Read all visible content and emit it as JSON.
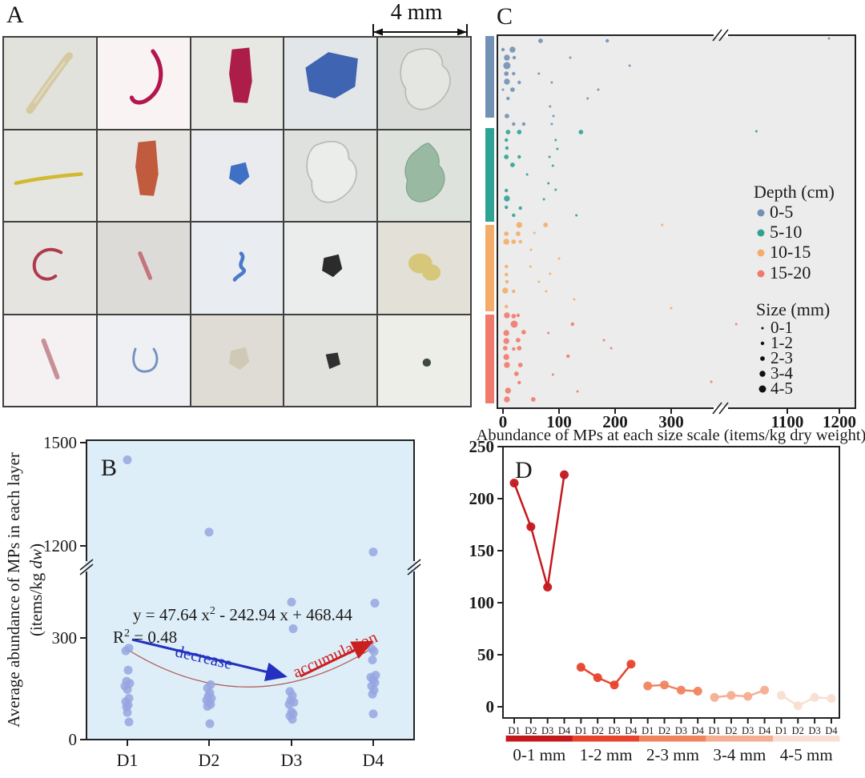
{
  "figure_labels": {
    "a": "A",
    "b": "B",
    "c": "C",
    "d": "D"
  },
  "panel_a": {
    "scale_bar_label": "4 mm",
    "cells": [
      {
        "desc": "beige fiber",
        "type": "fiber-thick-diag",
        "color": "#d5c9a2",
        "bg": "#e2e2dc"
      },
      {
        "desc": "crimson curved fiber",
        "type": "fiber-curve-j",
        "color": "#b2164e",
        "bg": "#f9f3f4"
      },
      {
        "desc": "crimson fragment",
        "type": "fragment-tall",
        "color": "#ac1d4a",
        "bg": "#e7e7e3"
      },
      {
        "desc": "blue fragment",
        "type": "fragment-wide",
        "color": "#3f64b1",
        "bg": "#e3e6e9"
      },
      {
        "desc": "transparent film",
        "type": "film-large",
        "color": "#e3e7e2",
        "bg": "#d9dcd8"
      },
      {
        "desc": "yellow fiber",
        "type": "fiber-thin-h",
        "color": "#d3b931",
        "bg": "#e5e5e1"
      },
      {
        "desc": "orange-red fragment",
        "type": "fragment-tall",
        "color": "#c05b3d",
        "bg": "#e7e5e1"
      },
      {
        "desc": "blue fragment small",
        "type": "fragment-small",
        "color": "#4070c6",
        "bg": "#e9ebef"
      },
      {
        "desc": "transparent fragment",
        "type": "film-large",
        "color": "#eceeec",
        "bg": "#dee1dd"
      },
      {
        "desc": "green film",
        "type": "film-crumpled",
        "color": "#93b59d",
        "bg": "#dde2dc"
      },
      {
        "desc": "red curved fiber",
        "type": "fiber-curve-c",
        "color": "#ae3a4e",
        "bg": "#e5e4e0"
      },
      {
        "desc": "pink short fiber",
        "type": "fiber-short",
        "color": "#c3747f",
        "bg": "#dddbd7"
      },
      {
        "desc": "blue small fiber",
        "type": "squiggle",
        "color": "#4b7aca",
        "bg": "#e9edf2"
      },
      {
        "desc": "black fragment",
        "type": "fragment-small",
        "color": "#2b2b2b",
        "bg": "#ebecec"
      },
      {
        "desc": "yellow fragment",
        "type": "clump",
        "color": "#d7c77b",
        "bg": "#e3e1d7"
      },
      {
        "desc": "pink fiber",
        "type": "fiber-straight",
        "color": "#c88f96",
        "bg": "#f5f0f2"
      },
      {
        "desc": "blue curved thin fiber",
        "type": "fiber-curve-u",
        "color": "#7191c3",
        "bg": "#eef0f3"
      },
      {
        "desc": "white fragment",
        "type": "fragment-small",
        "color": "#cfc9b6",
        "bg": "#dedcd4"
      },
      {
        "desc": "black fragment small",
        "type": "frag-tiny",
        "color": "#303030",
        "bg": "#e1e2de"
      },
      {
        "desc": "dark green tiny fragment",
        "type": "dot-tiny",
        "color": "#3d4b3d",
        "bg": "#eeeee8"
      }
    ]
  },
  "chart_data": [
    {
      "panel": "B",
      "type": "scatter",
      "ylabel_line1": "Average abundance of MPs in each layer",
      "ylabel_line2_prefix": "(items/kg ",
      "ylabel_line2_italic": "dw",
      "ylabel_line2_suffix": ")",
      "categories": [
        "D1",
        "D2",
        "D3",
        "D4"
      ],
      "yticks": [
        0,
        300,
        1200,
        1500
      ],
      "ylim": [
        0,
        1500
      ],
      "axis_break_between": [
        300,
        1200
      ],
      "grid": false,
      "bg": "#ddeef8",
      "dot_color": "#97a6e0",
      "points": {
        "D1": [
          1450,
          270,
          262,
          205,
          172,
          166,
          158,
          148,
          122,
          112,
          102,
          96,
          80,
          52
        ],
        "D2": [
          1240,
          162,
          152,
          138,
          128,
          122,
          116,
          110,
          104,
          98,
          47
        ],
        "D3": [
          650,
          390,
          142,
          130,
          116,
          110,
          104,
          82,
          76,
          70,
          60
        ],
        "D4": [
          1140,
          640,
          268,
          260,
          235,
          190,
          184,
          176,
          168,
          158,
          146,
          134,
          76
        ]
      },
      "equation_parts": {
        "pre": "y = 47.64 x",
        "sup": "2",
        "post": " - 242.94 x + 468.44"
      },
      "r2_parts": {
        "pre": "R",
        "sup": "2",
        "post": " = 0.48"
      },
      "arrow_decrease": {
        "label": "decrease",
        "color": "#2430c0"
      },
      "arrow_accumulation": {
        "label": "accumulation",
        "color": "#cc1f1f"
      }
    },
    {
      "panel": "C",
      "type": "bubble-scatter",
      "xlabel": "Abundance of MPs at each size scale (items/kg dry weight)",
      "xticks": [
        0,
        100,
        200,
        300,
        1100,
        1200
      ],
      "xlim": [
        0,
        1200
      ],
      "axis_break_between": [
        300,
        1100
      ],
      "bg": "#ececec",
      "legend": {
        "depth_title": "Depth (cm)",
        "depths": [
          {
            "label": "0-5",
            "color": "#7191b5"
          },
          {
            "label": "5-10",
            "color": "#2ea394"
          },
          {
            "label": "10-15",
            "color": "#f4ad68"
          },
          {
            "label": "15-20",
            "color": "#f27a6c"
          }
        ],
        "size_title": "Size (mm)",
        "sizes": [
          "0-1",
          "1-2",
          "2-3",
          "3-4",
          "4-5"
        ]
      },
      "points_format": [
        "depth_index",
        "y_px",
        "abundance",
        "size_class"
      ],
      "points": [
        [
          0,
          48,
          1180,
          1
        ],
        [
          0,
          51,
          67,
          3
        ],
        [
          0,
          51,
          186,
          2
        ],
        [
          0,
          62,
          0,
          2
        ],
        [
          0,
          62,
          17,
          4
        ],
        [
          0,
          72,
          7,
          4
        ],
        [
          0,
          72,
          20,
          2
        ],
        [
          0,
          72,
          120,
          1
        ],
        [
          0,
          82,
          7,
          5
        ],
        [
          0,
          82,
          226,
          1
        ],
        [
          0,
          92,
          6,
          3
        ],
        [
          0,
          92,
          19,
          2
        ],
        [
          0,
          92,
          64,
          1
        ],
        [
          0,
          102,
          7,
          4
        ],
        [
          0,
          103,
          29,
          2
        ],
        [
          0,
          103,
          87,
          1
        ],
        [
          0,
          112,
          0,
          1
        ],
        [
          0,
          112,
          17,
          3
        ],
        [
          0,
          112,
          170,
          1
        ],
        [
          0,
          123,
          9,
          2
        ],
        [
          0,
          123,
          151,
          1
        ],
        [
          0,
          133,
          84,
          1
        ],
        [
          0,
          145,
          7,
          3
        ],
        [
          0,
          145,
          90,
          1
        ],
        [
          0,
          155,
          19,
          2
        ],
        [
          0,
          155,
          37,
          2
        ],
        [
          0,
          155,
          87,
          1
        ],
        [
          1,
          165,
          9,
          3
        ],
        [
          1,
          165,
          29,
          3
        ],
        [
          1,
          165,
          139,
          3
        ],
        [
          1,
          175,
          6,
          2
        ],
        [
          1,
          175,
          94,
          1
        ],
        [
          1,
          185,
          7,
          2
        ],
        [
          1,
          186,
          97,
          1
        ],
        [
          1,
          196,
          6,
          3
        ],
        [
          1,
          196,
          29,
          2
        ],
        [
          1,
          196,
          83,
          1
        ],
        [
          1,
          206,
          17,
          3
        ],
        [
          1,
          207,
          89,
          1
        ],
        [
          1,
          218,
          43,
          1
        ],
        [
          1,
          229,
          81,
          1
        ],
        [
          1,
          238,
          6,
          2
        ],
        [
          1,
          237,
          94,
          1
        ],
        [
          1,
          248,
          7,
          4
        ],
        [
          1,
          249,
          73,
          1
        ],
        [
          1,
          259,
          6,
          2
        ],
        [
          1,
          260,
          31,
          2
        ],
        [
          1,
          269,
          19,
          2
        ],
        [
          1,
          269,
          131,
          1
        ],
        [
          1,
          164,
          870,
          1
        ],
        [
          2,
          281,
          29,
          4
        ],
        [
          2,
          281,
          76,
          3
        ],
        [
          2,
          281,
          284,
          1
        ],
        [
          2,
          292,
          6,
          3
        ],
        [
          2,
          292,
          27,
          3
        ],
        [
          2,
          291,
          56,
          1
        ],
        [
          2,
          302,
          6,
          4
        ],
        [
          2,
          302,
          19,
          3
        ],
        [
          2,
          302,
          31,
          2
        ],
        [
          2,
          312,
          50,
          1
        ],
        [
          2,
          323,
          100,
          1
        ],
        [
          2,
          333,
          6,
          2
        ],
        [
          2,
          333,
          49,
          1
        ],
        [
          2,
          343,
          6,
          2
        ],
        [
          2,
          342,
          84,
          1
        ],
        [
          2,
          352,
          7,
          2
        ],
        [
          2,
          352,
          64,
          1
        ],
        [
          2,
          363,
          4,
          4
        ],
        [
          2,
          364,
          19,
          2
        ],
        [
          2,
          364,
          77,
          1
        ],
        [
          2,
          374,
          127,
          1
        ],
        [
          2,
          383,
          6,
          2
        ],
        [
          2,
          385,
          300,
          1
        ],
        [
          3,
          394,
          7,
          4
        ],
        [
          3,
          395,
          19,
          3
        ],
        [
          3,
          394,
          27,
          2
        ],
        [
          3,
          405,
          20,
          5
        ],
        [
          3,
          405,
          124,
          2
        ],
        [
          3,
          405,
          720,
          1
        ],
        [
          3,
          416,
          6,
          4
        ],
        [
          3,
          415,
          37,
          3
        ],
        [
          3,
          416,
          81,
          1
        ],
        [
          3,
          426,
          6,
          4
        ],
        [
          3,
          425,
          27,
          3
        ],
        [
          3,
          425,
          180,
          1
        ],
        [
          3,
          435,
          4,
          3
        ],
        [
          3,
          436,
          19,
          2
        ],
        [
          3,
          435,
          29,
          3
        ],
        [
          3,
          435,
          193,
          1
        ],
        [
          3,
          446,
          6,
          4
        ],
        [
          3,
          445,
          116,
          2
        ],
        [
          3,
          456,
          7,
          4
        ],
        [
          3,
          456,
          31,
          3
        ],
        [
          3,
          467,
          24,
          3
        ],
        [
          3,
          468,
          89,
          1
        ],
        [
          3,
          477,
          535,
          1
        ],
        [
          3,
          478,
          29,
          2
        ],
        [
          3,
          488,
          9,
          4
        ],
        [
          3,
          489,
          133,
          1
        ],
        [
          3,
          499,
          7,
          4
        ],
        [
          3,
          499,
          54,
          3
        ]
      ]
    },
    {
      "panel": "D",
      "type": "line",
      "yticks": [
        0,
        50,
        100,
        150,
        200,
        250
      ],
      "ylim": [
        0,
        250
      ],
      "categories": [
        "D1",
        "D2",
        "D3",
        "D4"
      ],
      "grid": false,
      "groups": [
        {
          "label": "0-1 mm",
          "color": "#c4181d",
          "values": [
            215,
            173,
            115,
            223
          ]
        },
        {
          "label": "1-2 mm",
          "color": "#e8432c",
          "values": [
            38,
            28,
            21,
            41
          ]
        },
        {
          "label": "2-3 mm",
          "color": "#f0845f",
          "values": [
            20,
            21,
            16,
            15
          ]
        },
        {
          "label": "3-4 mm",
          "color": "#f5ae91",
          "values": [
            9,
            11,
            10,
            16
          ]
        },
        {
          "label": "4-5 mm",
          "color": "#f9ded2",
          "values": [
            11,
            1,
            9,
            8
          ]
        }
      ]
    }
  ]
}
